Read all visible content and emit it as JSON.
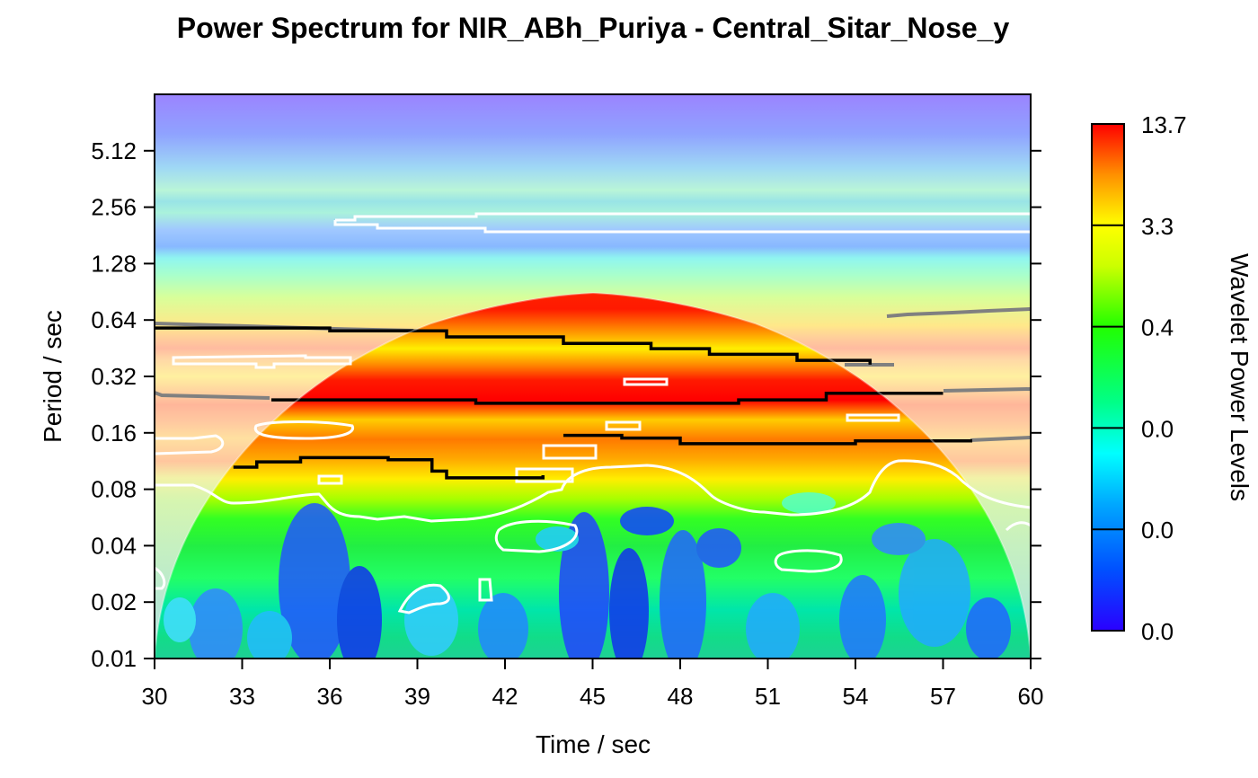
{
  "chart_data": {
    "type": "heatmap",
    "title": "Power Spectrum for NIR_ABh_Puriya - Central_Sitar_Nose_y",
    "xlabel": "Time / sec",
    "ylabel": "Period / sec",
    "xlim": [
      30,
      60
    ],
    "x_ticks": [
      "30",
      "33",
      "36",
      "39",
      "42",
      "45",
      "48",
      "51",
      "54",
      "57",
      "60"
    ],
    "x_tick_values": [
      30,
      33,
      36,
      39,
      42,
      45,
      48,
      51,
      54,
      57,
      60
    ],
    "y_scale": "log2",
    "ylim": [
      0.01,
      10.24
    ],
    "y_ticks": [
      "0.01",
      "0.02",
      "0.04",
      "0.08",
      "0.16",
      "0.32",
      "0.64",
      "1.28",
      "2.56",
      "5.12"
    ],
    "y_tick_values": [
      0.01,
      0.02,
      0.04,
      0.08,
      0.16,
      0.32,
      0.64,
      1.28,
      2.56,
      5.12
    ],
    "colorbar": {
      "label": "Wavelet Power Levels",
      "labels": [
        "13.7",
        "3.3",
        "0.4",
        "0.0",
        "0.0",
        "0.0"
      ],
      "colors": [
        "#ff0000",
        "#ff8c00",
        "#ffff00",
        "#00ff00",
        "#00ffcc",
        "#00aaff",
        "#0000ff"
      ]
    },
    "ridge_lines": [
      {
        "name": "ridge-0.64",
        "x": [
          30,
          36,
          40,
          44,
          47,
          49,
          52,
          54.5
        ],
        "y": [
          0.58,
          0.56,
          0.52,
          0.48,
          0.45,
          0.42,
          0.39,
          0.37
        ]
      },
      {
        "name": "ridge-0.25",
        "x": [
          34,
          39,
          41,
          44,
          47,
          50,
          53,
          57
        ],
        "y": [
          0.24,
          0.24,
          0.23,
          0.23,
          0.23,
          0.24,
          0.26,
          0.26
        ]
      },
      {
        "name": "ridge-0.14",
        "x": [
          44,
          46,
          48,
          51,
          54,
          58
        ],
        "y": [
          0.155,
          0.15,
          0.14,
          0.14,
          0.145,
          0.145
        ]
      },
      {
        "name": "ridge-0.10",
        "x": [
          32.7,
          33.5,
          35,
          38,
          39.5,
          40,
          42,
          43.3
        ],
        "y": [
          0.105,
          0.112,
          0.118,
          0.115,
          0.1,
          0.092,
          0.092,
          0.095
        ]
      }
    ]
  }
}
